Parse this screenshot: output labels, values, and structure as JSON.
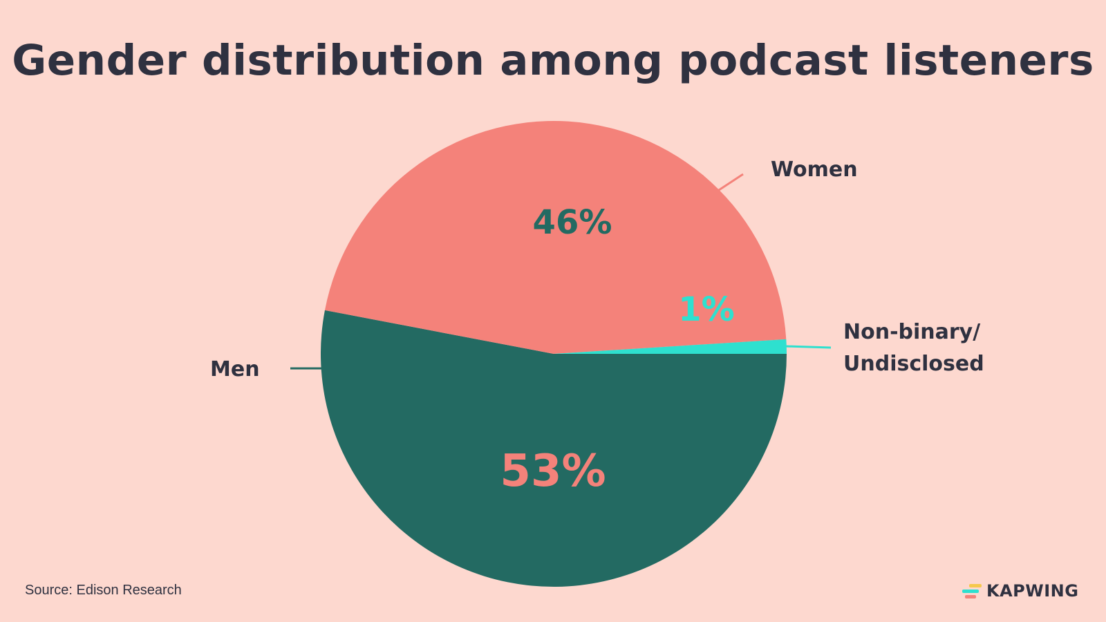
{
  "chart_data": {
    "type": "pie",
    "title": "Gender distribution among podcast listeners",
    "slices": [
      {
        "label": "Men",
        "value": 53,
        "value_label": "53%",
        "color": "#236a62",
        "value_label_color": "#f4827a"
      },
      {
        "label": "Women",
        "value": 46,
        "value_label": "46%",
        "color": "#f4827a",
        "value_label_color": "#236a62"
      },
      {
        "label": "Non-binary/\nUndisclosed",
        "value": 1,
        "value_label": "1%",
        "color": "#2ee0cf",
        "value_label_color": "#2ee0cf"
      }
    ],
    "source": "Source: Edison Research"
  },
  "branding": {
    "name": "KAPWING",
    "icon": "kapwing-logo-icon",
    "icon_colors": [
      "#f5c84c",
      "#2ee0cf",
      "#f4827a"
    ]
  },
  "colors": {
    "background": "#fdd8cf",
    "text": "#2f3140"
  }
}
